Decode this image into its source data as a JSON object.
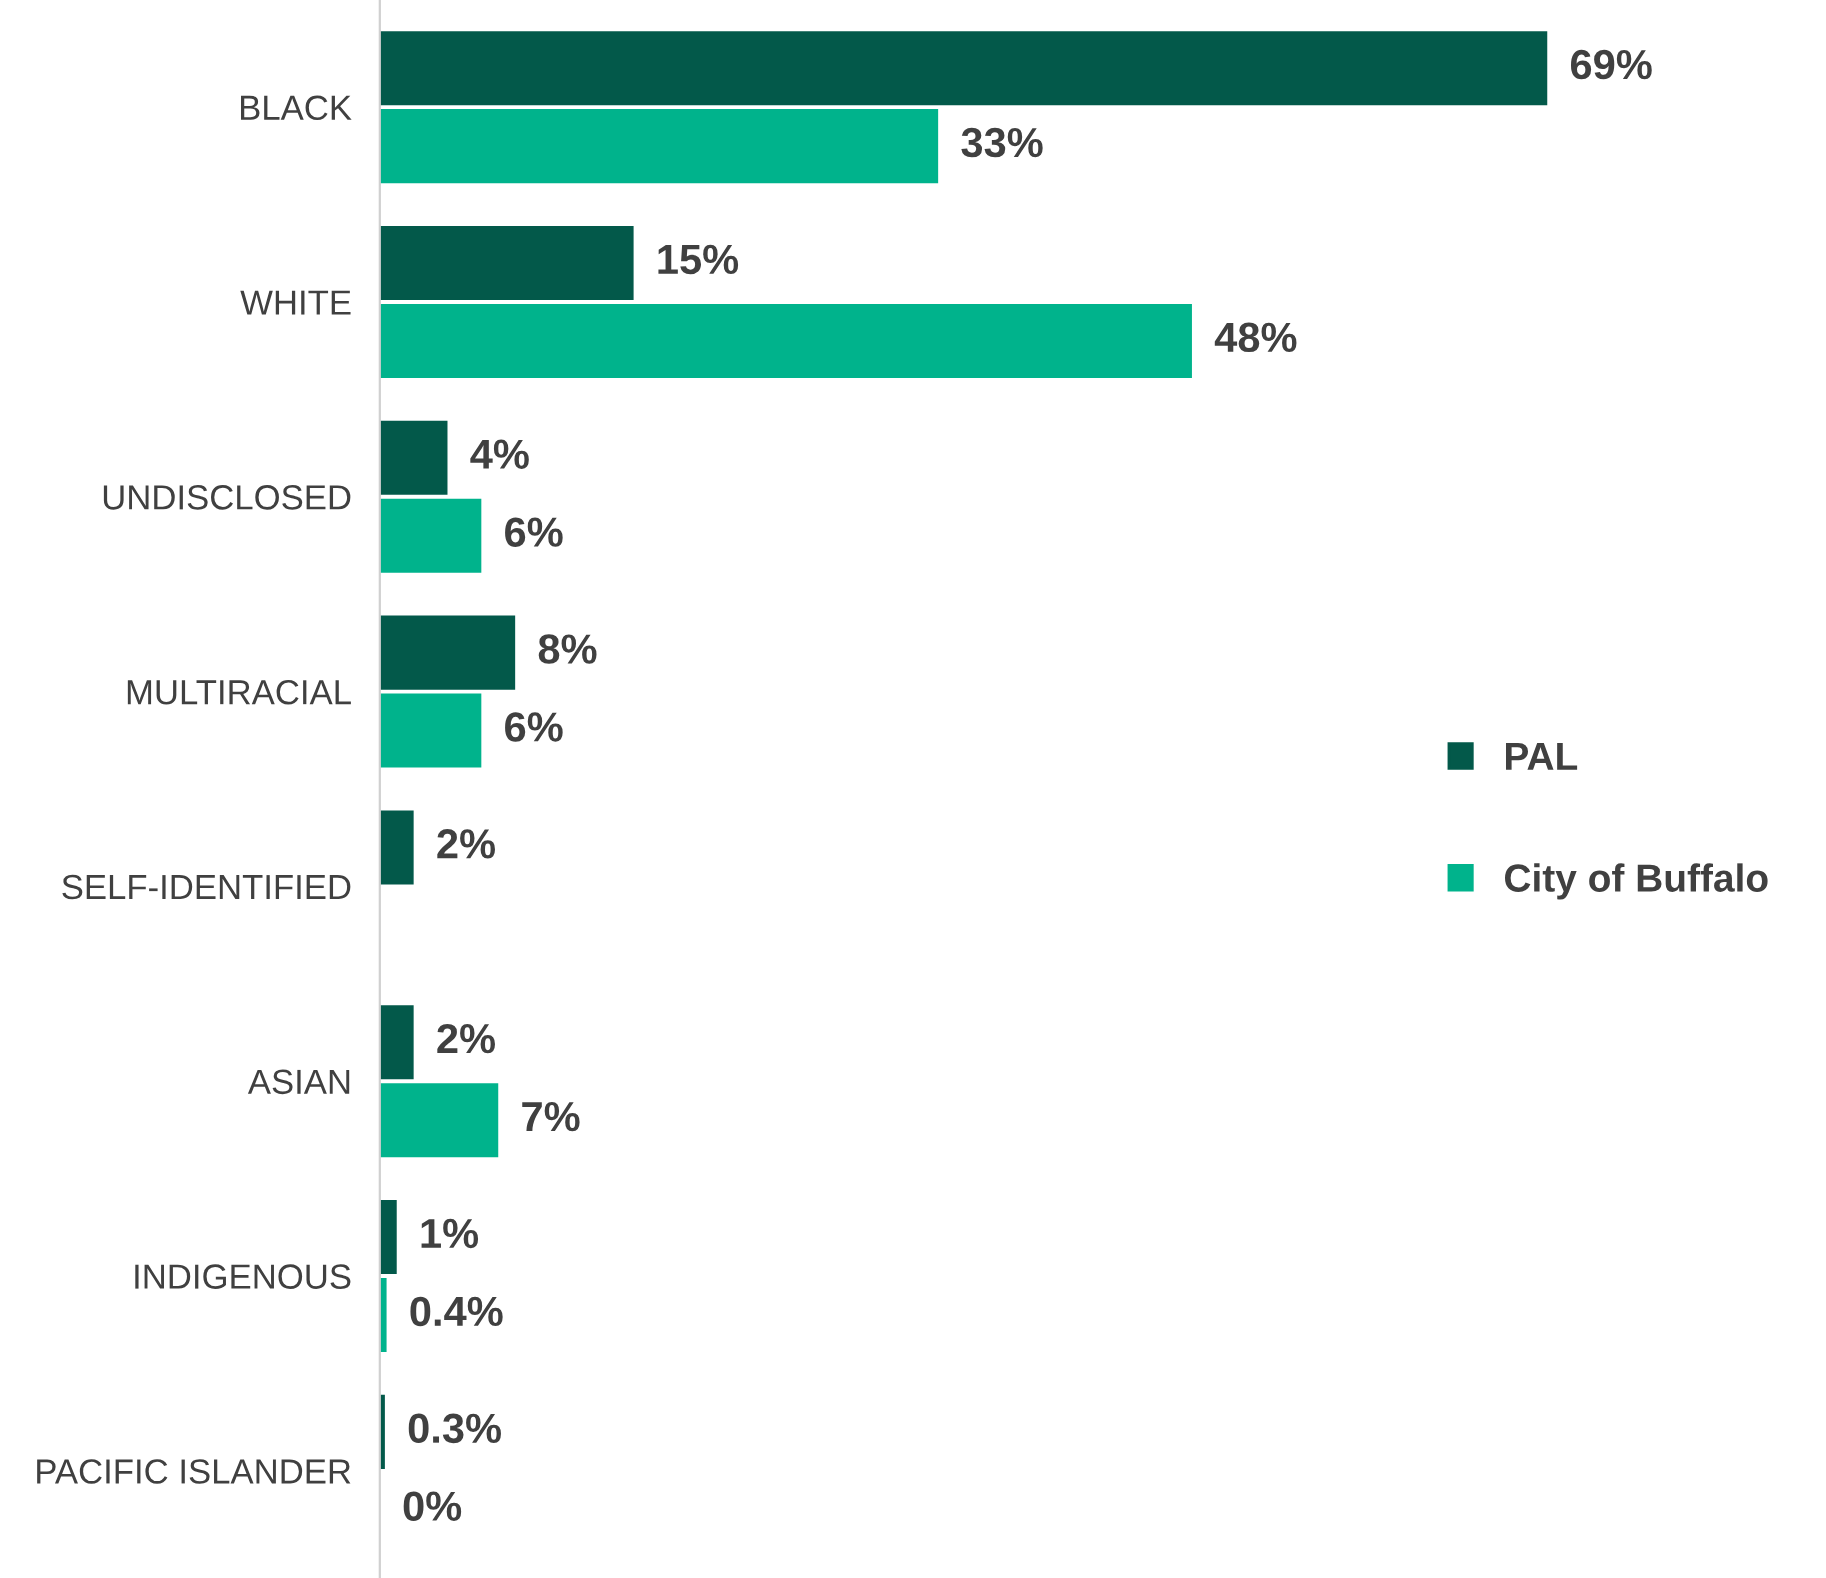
{
  "chart_data": {
    "type": "bar",
    "orientation": "horizontal",
    "categories": [
      "BLACK",
      "WHITE",
      "UNDISCLOSED",
      "MULTIRACIAL",
      "SELF-IDENTIFIED",
      "ASIAN",
      "INDIGENOUS",
      "PACIFIC ISLANDER"
    ],
    "series": [
      {
        "name": "PAL",
        "color": "#03594a",
        "values": [
          69,
          15,
          4,
          8,
          2,
          2,
          1,
          0.3
        ],
        "value_labels": [
          "69%",
          "15%",
          "4%",
          "8%",
          "2%",
          "2%",
          "1%",
          "0.3%"
        ]
      },
      {
        "name": "City of Buffalo",
        "color": "#00b38c",
        "values": [
          33,
          48,
          6,
          6,
          null,
          7,
          0.4,
          0
        ],
        "value_labels": [
          "33%",
          "48%",
          "6%",
          "6%",
          null,
          "7%",
          "0.4%",
          "0%"
        ]
      }
    ],
    "legend": "right",
    "grid": false
  }
}
